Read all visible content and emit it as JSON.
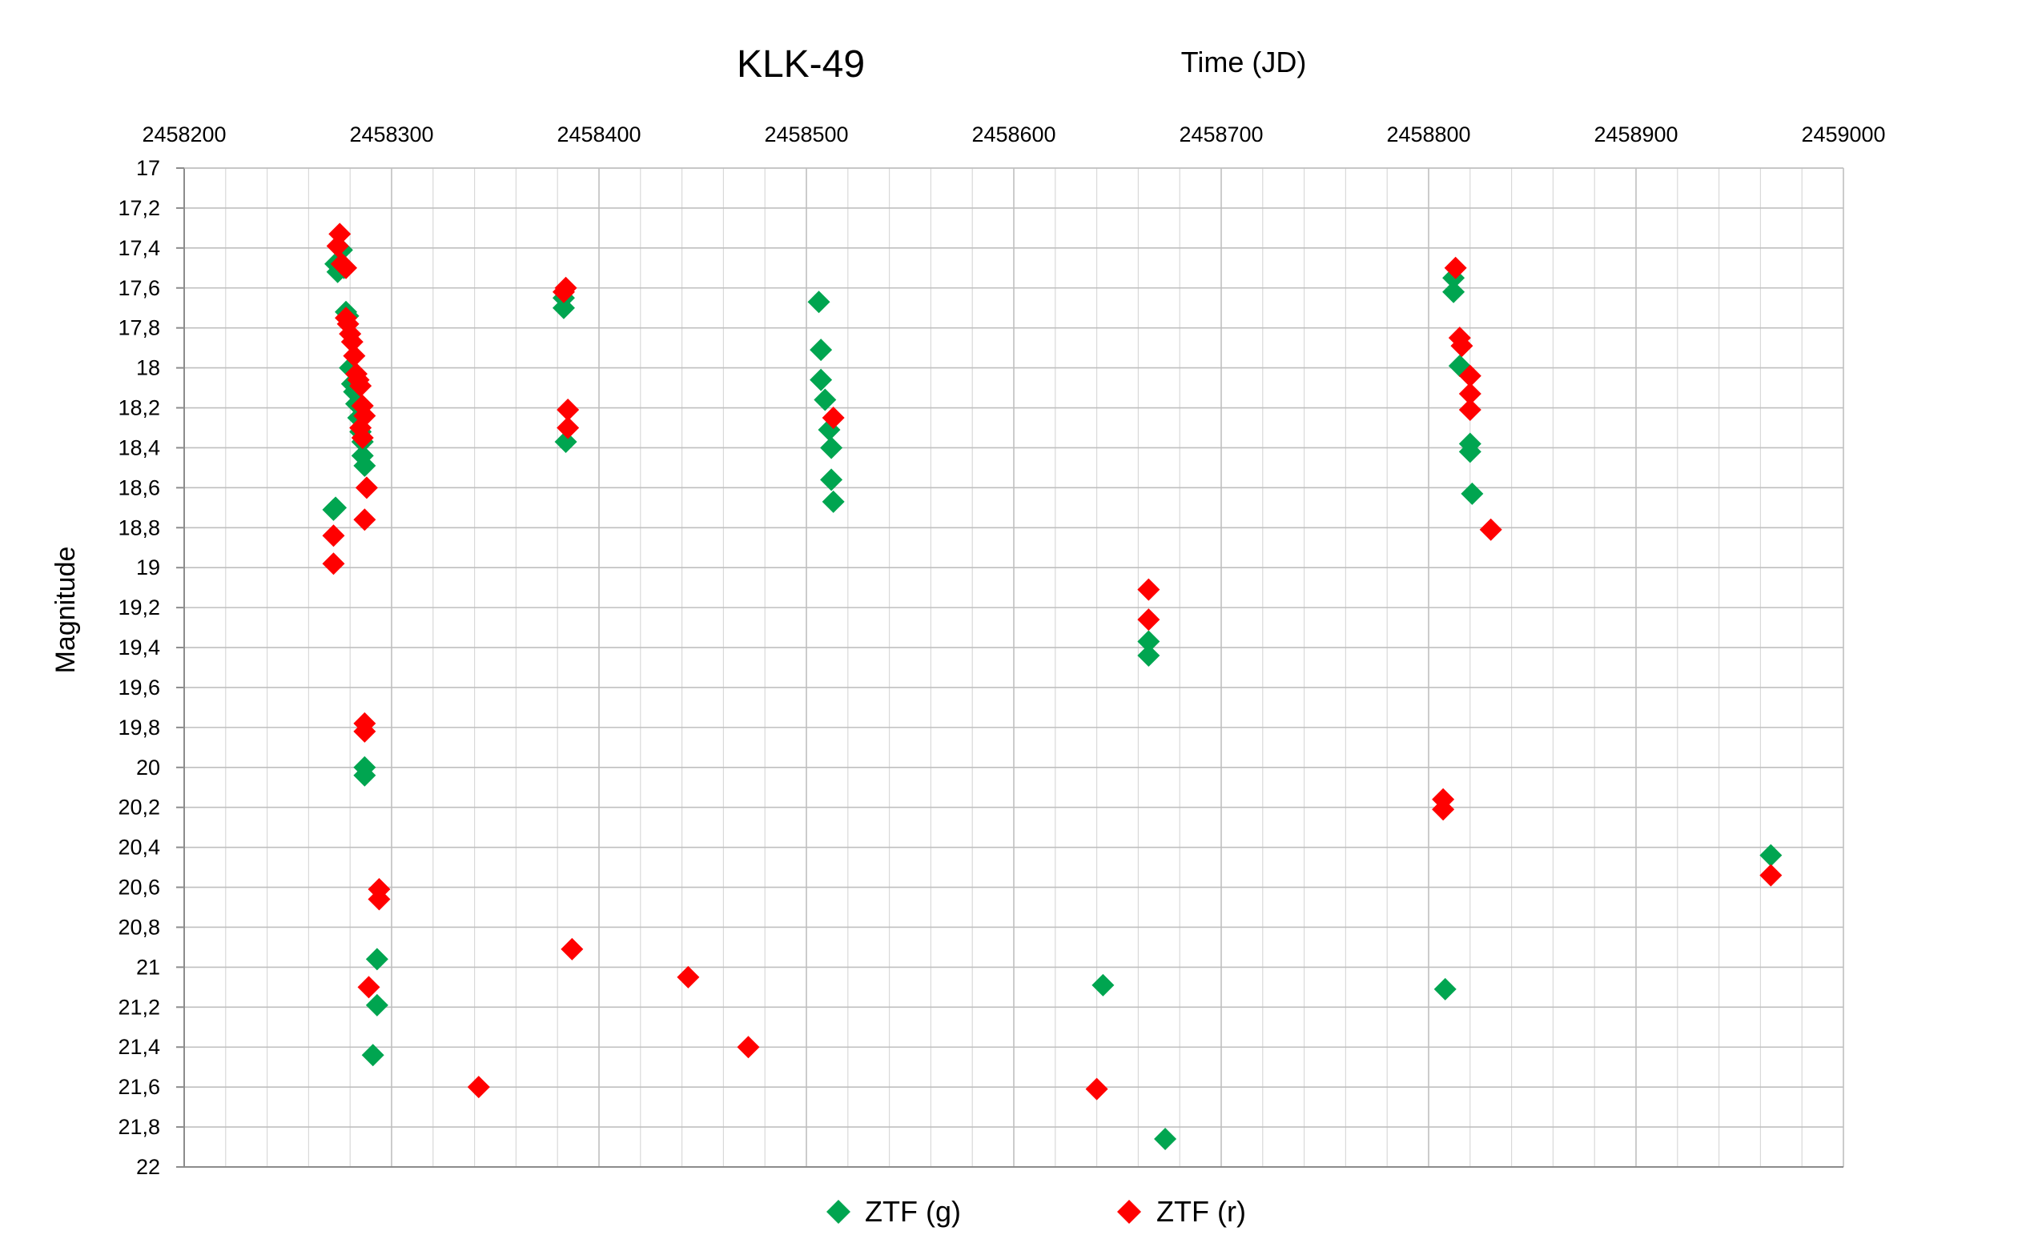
{
  "chart_data": {
    "type": "scatter",
    "title": "KLK-49",
    "xlabel": "Time (JD)",
    "ylabel": "Magnitude",
    "x_axis_position": "top",
    "y_inverted": true,
    "xlim": [
      2458200,
      2459000
    ],
    "ylim": [
      17,
      22
    ],
    "x_ticks": [
      2458200,
      2458300,
      2458400,
      2458500,
      2458600,
      2458700,
      2458800,
      2458900,
      2459000
    ],
    "x_tick_labels": [
      "2458200",
      "2458300",
      "2458400",
      "2458500",
      "2458600",
      "2458700",
      "2458800",
      "2458900",
      "2459000"
    ],
    "y_ticks": [
      17,
      17.2,
      17.4,
      17.6,
      17.8,
      18,
      18.2,
      18.4,
      18.6,
      18.8,
      19,
      19.2,
      19.4,
      19.6,
      19.8,
      20,
      20.2,
      20.4,
      20.6,
      20.8,
      21,
      21.2,
      21.4,
      21.6,
      21.8,
      22
    ],
    "y_tick_labels": [
      "17",
      "17,2",
      "17,4",
      "17,6",
      "17,8",
      "18",
      "18,2",
      "18,4",
      "18,6",
      "18,8",
      "19",
      "19,2",
      "19,4",
      "19,6",
      "19,8",
      "20",
      "20,2",
      "20,4",
      "20,6",
      "20,8",
      "21",
      "21,2",
      "21,4",
      "21,6",
      "21,8",
      "22"
    ],
    "grid": true,
    "x_minor_step": 20,
    "legend_position": "bottom-center",
    "series": [
      {
        "name": "ZTF (g)",
        "color": "#00a550",
        "marker": "diamond",
        "points": [
          [
            2458273,
            17.48
          ],
          [
            2458274,
            17.52
          ],
          [
            2458276,
            17.41
          ],
          [
            2458277,
            17.5
          ],
          [
            2458278,
            17.72
          ],
          [
            2458279,
            17.74
          ],
          [
            2458280,
            18.0
          ],
          [
            2458281,
            18.08
          ],
          [
            2458282,
            18.12
          ],
          [
            2458283,
            18.18
          ],
          [
            2458284,
            18.25
          ],
          [
            2458285,
            18.32
          ],
          [
            2458286,
            18.37
          ],
          [
            2458286,
            18.44
          ],
          [
            2458287,
            18.49
          ],
          [
            2458272,
            18.71
          ],
          [
            2458273,
            18.7
          ],
          [
            2458287,
            20.0
          ],
          [
            2458287,
            20.04
          ],
          [
            2458293,
            20.96
          ],
          [
            2458293,
            21.19
          ],
          [
            2458291,
            21.44
          ],
          [
            2458383,
            17.65
          ],
          [
            2458383,
            17.7
          ],
          [
            2458384,
            18.37
          ],
          [
            2458506,
            17.67
          ],
          [
            2458507,
            17.91
          ],
          [
            2458507,
            18.06
          ],
          [
            2458509,
            18.16
          ],
          [
            2458511,
            18.31
          ],
          [
            2458512,
            18.4
          ],
          [
            2458512,
            18.56
          ],
          [
            2458513,
            18.67
          ],
          [
            2458643,
            21.09
          ],
          [
            2458673,
            21.86
          ],
          [
            2458665,
            19.37
          ],
          [
            2458665,
            19.44
          ],
          [
            2458812,
            17.55
          ],
          [
            2458812,
            17.62
          ],
          [
            2458815,
            17.99
          ],
          [
            2458820,
            18.38
          ],
          [
            2458820,
            18.42
          ],
          [
            2458821,
            18.63
          ],
          [
            2458808,
            21.11
          ],
          [
            2458965,
            20.44
          ]
        ]
      },
      {
        "name": "ZTF (r)",
        "color": "#ff0000",
        "marker": "diamond",
        "points": [
          [
            2458275,
            17.33
          ],
          [
            2458274,
            17.39
          ],
          [
            2458276,
            17.48
          ],
          [
            2458277,
            17.49
          ],
          [
            2458278,
            17.5
          ],
          [
            2458278,
            17.75
          ],
          [
            2458279,
            17.78
          ],
          [
            2458280,
            17.83
          ],
          [
            2458281,
            17.87
          ],
          [
            2458282,
            17.94
          ],
          [
            2458283,
            18.03
          ],
          [
            2458284,
            18.06
          ],
          [
            2458285,
            18.09
          ],
          [
            2458286,
            18.19
          ],
          [
            2458287,
            18.24
          ],
          [
            2458285,
            18.3
          ],
          [
            2458286,
            18.35
          ],
          [
            2458288,
            18.6
          ],
          [
            2458287,
            18.76
          ],
          [
            2458272,
            18.84
          ],
          [
            2458272,
            18.98
          ],
          [
            2458287,
            19.78
          ],
          [
            2458287,
            19.82
          ],
          [
            2458294,
            20.61
          ],
          [
            2458294,
            20.66
          ],
          [
            2458289,
            21.1
          ],
          [
            2458342,
            21.6
          ],
          [
            2458384,
            17.6
          ],
          [
            2458383,
            17.62
          ],
          [
            2458385,
            18.21
          ],
          [
            2458385,
            18.3
          ],
          [
            2458387,
            20.91
          ],
          [
            2458443,
            21.05
          ],
          [
            2458472,
            21.4
          ],
          [
            2458513,
            18.25
          ],
          [
            2458640,
            21.61
          ],
          [
            2458665,
            19.11
          ],
          [
            2458665,
            19.26
          ],
          [
            2458813,
            17.5
          ],
          [
            2458815,
            17.85
          ],
          [
            2458816,
            17.89
          ],
          [
            2458820,
            18.04
          ],
          [
            2458820,
            18.13
          ],
          [
            2458820,
            18.21
          ],
          [
            2458830,
            18.81
          ],
          [
            2458807,
            20.16
          ],
          [
            2458807,
            20.21
          ],
          [
            2458965,
            20.54
          ]
        ]
      }
    ]
  }
}
